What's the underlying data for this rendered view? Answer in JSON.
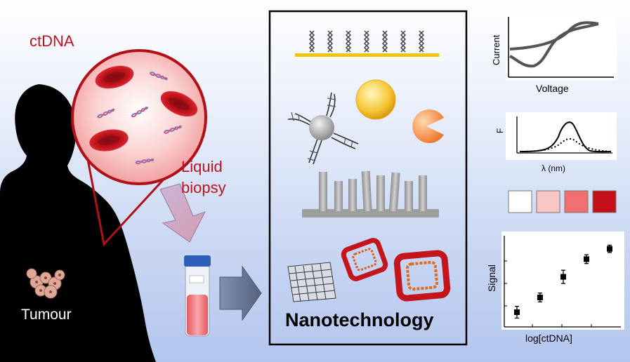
{
  "labels": {
    "ctdna": "ctDNA",
    "liquid": "Liquid",
    "biopsy": "biopsy",
    "tumour": "Tumour",
    "nanotechnology": "Nanotechnology"
  },
  "cv_plot": {
    "ylabel": "Current",
    "xlabel": "Voltage"
  },
  "fluor_plot": {
    "ylabel": "F",
    "xlabel": "λ (nm)"
  },
  "color_swatches": [
    "#ffffff",
    "#f9c6c6",
    "#f07070",
    "#c4101a"
  ],
  "chart_data": {
    "type": "scatter",
    "xlabel": "log[ctDNA]",
    "ylabel": "Signal",
    "y": [
      1,
      2,
      3.4,
      4.6,
      5.3
    ],
    "error": [
      0.4,
      0.3,
      0.45,
      0.3,
      0.25
    ],
    "ylim": [
      0,
      6
    ]
  },
  "colors": {
    "label_red": "#c0121c",
    "silhouette": "#000000",
    "panel_frame": "#000000"
  }
}
